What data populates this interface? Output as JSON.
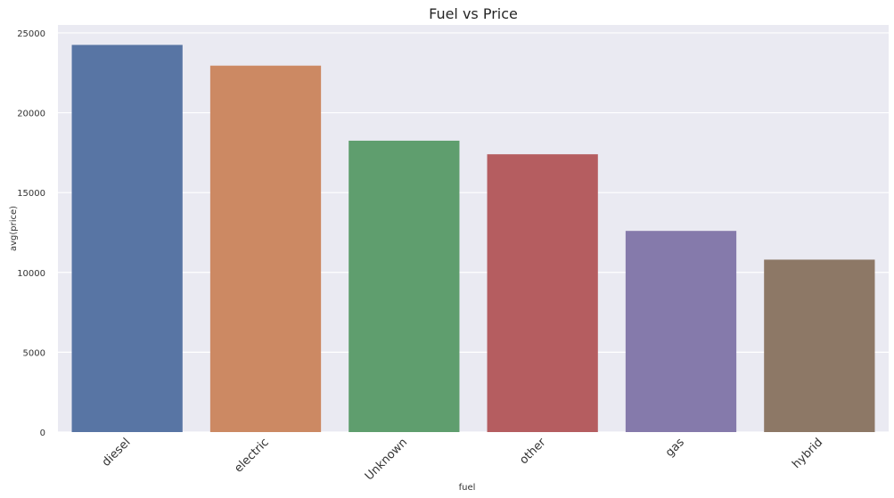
{
  "chart_data": {
    "type": "bar",
    "title": "Fuel vs Price",
    "xlabel": "fuel",
    "ylabel": "avg(price)",
    "categories": [
      "diesel",
      "electric",
      "Unknown",
      "other",
      "gas",
      "hybrid"
    ],
    "values": [
      24250,
      22950,
      18250,
      17400,
      12600,
      10800
    ],
    "colors": [
      "#5875a4",
      "#cc8963",
      "#5f9e6e",
      "#b55d60",
      "#857aab",
      "#8d7866"
    ],
    "ylim": [
      0,
      25500
    ],
    "yticks": [
      0,
      5000,
      10000,
      15000,
      20000,
      25000
    ],
    "ytick_labels": [
      "0",
      "5000",
      "10000",
      "15000",
      "20000",
      "25000"
    ],
    "grid": true,
    "plot_background": "#eaeaf2"
  }
}
